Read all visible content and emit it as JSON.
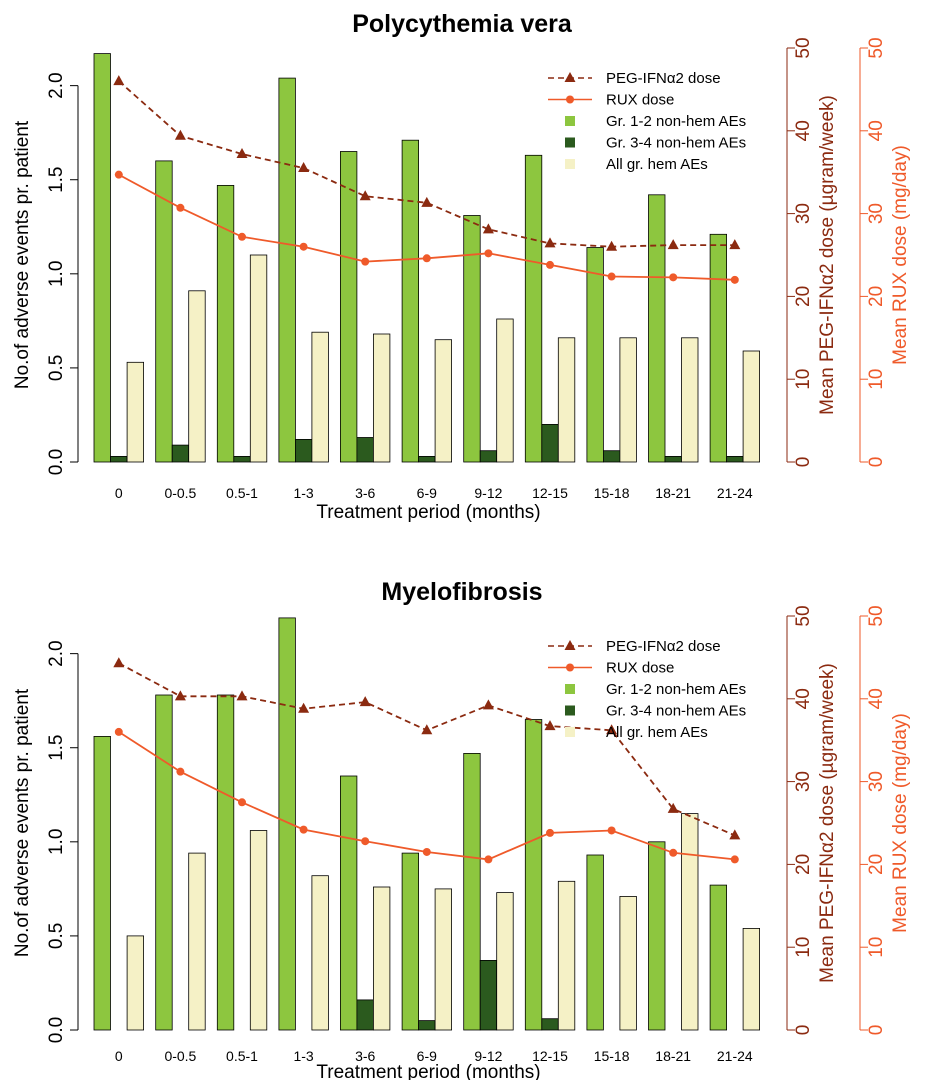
{
  "colors": {
    "g12": "#8dc63f",
    "g34": "#2b5a1e",
    "hem": "#f5f1c6",
    "peg": "#8b2a10",
    "rux": "#ef5a2a",
    "axis": "#000000"
  },
  "chart_data": [
    {
      "type": "bar",
      "title": "Polycythemia vera",
      "xlabel": "Treatment period (months)",
      "ylabel": "No.of adverse events pr. patient",
      "y2label": "Mean PEG-IFNα2 dose (µgram/week)",
      "y3label": "Mean RUX dose (mg/day)",
      "ylim": [
        0,
        2.2
      ],
      "y2lim": [
        0,
        50
      ],
      "y3lim": [
        0,
        50
      ],
      "yticks": [
        0.0,
        0.5,
        1.0,
        1.5,
        2.0
      ],
      "y2ticks": [
        0,
        10,
        20,
        30,
        40,
        50
      ],
      "y3ticks": [
        0,
        10,
        20,
        30,
        40,
        50
      ],
      "legend_position": "top-right",
      "legend": [
        {
          "key": "peg",
          "label": "PEG-IFNα2 dose"
        },
        {
          "key": "rux",
          "label": "RUX dose"
        },
        {
          "key": "g12",
          "label": "Gr. 1-2 non-hem AEs"
        },
        {
          "key": "g34",
          "label": "Gr. 3-4 non-hem AEs"
        },
        {
          "key": "hem",
          "label": "All gr. hem AEs"
        }
      ],
      "categories": [
        "0",
        "0-0.5",
        "0.5-1",
        "1-3",
        "3-6",
        "6-9",
        "9-12",
        "12-15",
        "15-18",
        "18-21",
        "21-24"
      ],
      "series": [
        {
          "key": "g12",
          "name": "Gr. 1-2 non-hem AEs",
          "values": [
            2.17,
            1.6,
            1.47,
            2.04,
            1.65,
            1.71,
            1.31,
            1.63,
            1.14,
            1.42,
            1.21
          ]
        },
        {
          "key": "g34",
          "name": "Gr. 3-4 non-hem AEs",
          "values": [
            0.03,
            0.09,
            0.03,
            0.12,
            0.13,
            0.03,
            0.06,
            0.2,
            0.06,
            0.03,
            0.03
          ]
        },
        {
          "key": "hem",
          "name": "All gr. hem AEs",
          "values": [
            0.53,
            0.91,
            1.1,
            0.69,
            0.68,
            0.65,
            0.76,
            0.66,
            0.66,
            0.66,
            0.59
          ]
        }
      ],
      "lines": [
        {
          "key": "peg",
          "name": "PEG-IFNα2 dose",
          "axis": "y2",
          "style": "dashed-triangle",
          "values": [
            46.0,
            39.4,
            37.2,
            35.5,
            32.1,
            31.3,
            28.1,
            26.4,
            26.0,
            26.2,
            26.2
          ]
        },
        {
          "key": "rux",
          "name": "RUX dose",
          "axis": "y3",
          "style": "solid-circle",
          "values": [
            34.7,
            30.7,
            27.2,
            26.0,
            24.2,
            24.6,
            25.2,
            23.8,
            22.4,
            22.3,
            22.0
          ]
        }
      ]
    },
    {
      "type": "bar",
      "title": "Myelofibrosis",
      "xlabel": "Treatment period (months)",
      "ylabel": "No.of adverse events pr. patient",
      "y2label": "Mean PEG-IFNα2 dose (µgram/week)",
      "y3label": "Mean RUX dose (mg/day)",
      "ylim": [
        0,
        2.2
      ],
      "y2lim": [
        0,
        50
      ],
      "y3lim": [
        0,
        50
      ],
      "yticks": [
        0.0,
        0.5,
        1.0,
        1.5,
        2.0
      ],
      "y2ticks": [
        0,
        10,
        20,
        30,
        40,
        50
      ],
      "y3ticks": [
        0,
        10,
        20,
        30,
        40,
        50
      ],
      "legend_position": "top-right",
      "legend": [
        {
          "key": "peg",
          "label": "PEG-IFNα2 dose"
        },
        {
          "key": "rux",
          "label": "RUX dose"
        },
        {
          "key": "g12",
          "label": "Gr. 1-2 non-hem AEs"
        },
        {
          "key": "g34",
          "label": "Gr. 3-4 non-hem AEs"
        },
        {
          "key": "hem",
          "label": "All gr. hem AEs"
        }
      ],
      "categories": [
        "0",
        "0-0.5",
        "0.5-1",
        "1-3",
        "3-6",
        "6-9",
        "9-12",
        "12-15",
        "15-18",
        "18-21",
        "21-24"
      ],
      "series": [
        {
          "key": "g12",
          "name": "Gr. 1-2 non-hem AEs",
          "values": [
            1.56,
            1.78,
            1.78,
            2.19,
            1.35,
            0.94,
            1.47,
            1.65,
            0.93,
            1.0,
            0.77
          ]
        },
        {
          "key": "g34",
          "name": "Gr. 3-4 non-hem AEs",
          "values": [
            0.0,
            0.0,
            0.0,
            0.0,
            0.16,
            0.05,
            0.37,
            0.06,
            0.0,
            0.0,
            0.0
          ]
        },
        {
          "key": "hem",
          "name": "All gr. hem AEs",
          "values": [
            0.5,
            0.94,
            1.06,
            0.82,
            0.76,
            0.75,
            0.73,
            0.79,
            0.71,
            1.15,
            0.54
          ]
        }
      ],
      "lines": [
        {
          "key": "peg",
          "name": "PEG-IFNα2 dose",
          "axis": "y2",
          "style": "dashed-triangle",
          "values": [
            44.3,
            40.3,
            40.3,
            38.8,
            39.6,
            36.2,
            39.2,
            36.7,
            36.2,
            26.7,
            23.5
          ]
        },
        {
          "key": "rux",
          "name": "RUX dose",
          "axis": "y3",
          "style": "solid-circle",
          "values": [
            36.0,
            31.2,
            27.5,
            24.2,
            22.8,
            21.5,
            20.6,
            23.8,
            24.1,
            21.4,
            20.6
          ]
        }
      ]
    }
  ]
}
